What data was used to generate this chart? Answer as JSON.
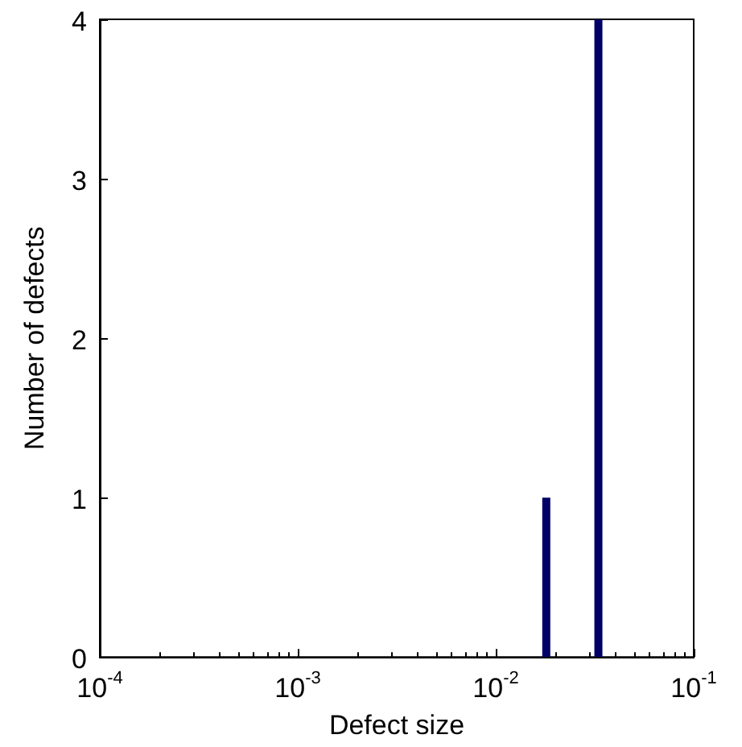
{
  "chart_data": {
    "type": "bar",
    "xlabel": "Defect size",
    "ylabel": "Number of defects",
    "x": [
      0.018,
      0.033
    ],
    "values": [
      1,
      4
    ],
    "color": "#000066",
    "xlim": [
      0.0001,
      0.1
    ],
    "xticks": [
      {
        "value": 0.0001,
        "label": "10$^{-4}$"
      },
      {
        "value": 0.001,
        "label": "10$^{-3}$"
      },
      {
        "value": 0.01,
        "label": "10$^{-2}$"
      },
      {
        "value": 0.1,
        "label": "10$^{-1}$"
      }
    ],
    "ylim": [
      0,
      4
    ],
    "yticks": [
      0,
      1,
      2,
      3,
      4
    ],
    "log": "x"
  }
}
